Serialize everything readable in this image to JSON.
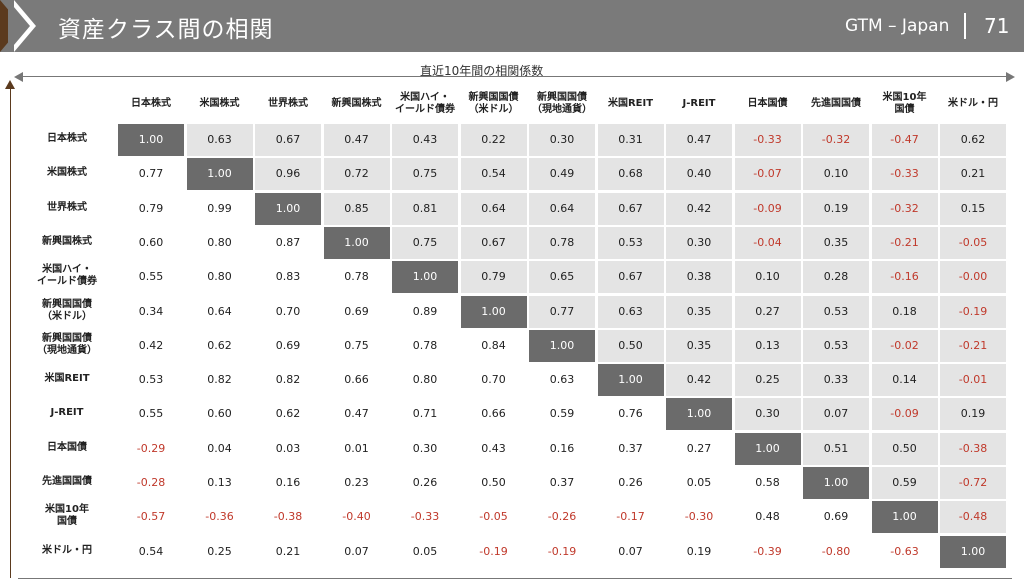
{
  "header": {
    "title": "資産クラス間の相関",
    "brand": "GTM – Japan",
    "page_number": "71"
  },
  "chart_data": {
    "type": "table",
    "title": "直近10年間の相関係数",
    "columns": [
      "日本株式",
      "米国株式",
      "世界株式",
      "新興国株式",
      "米国ハイ・\nイールド債券",
      "新興国国債\n（米ドル）",
      "新興国国債\n（現地通貨）",
      "米国REIT",
      "J-REIT",
      "日本国債",
      "先進国国債",
      "米国10年\n国債",
      "米ドル・円"
    ],
    "rows": [
      "日本株式",
      "米国株式",
      "世界株式",
      "新興国株式",
      "米国ハイ・\nイールド債券",
      "新興国国債\n（米ドル）",
      "新興国国債\n（現地通貨）",
      "米国REIT",
      "J-REIT",
      "日本国債",
      "先進国国債",
      "米国10年\n国債",
      "米ドル・円"
    ],
    "values": [
      [
        "1.00",
        "0.63",
        "0.67",
        "0.47",
        "0.43",
        "0.22",
        "0.30",
        "0.31",
        "0.47",
        "-0.33",
        "-0.32",
        "-0.47",
        "0.62"
      ],
      [
        "0.77",
        "1.00",
        "0.96",
        "0.72",
        "0.75",
        "0.54",
        "0.49",
        "0.68",
        "0.40",
        "-0.07",
        "0.10",
        "-0.33",
        "0.21"
      ],
      [
        "0.79",
        "0.99",
        "1.00",
        "0.85",
        "0.81",
        "0.64",
        "0.64",
        "0.67",
        "0.42",
        "-0.09",
        "0.19",
        "-0.32",
        "0.15"
      ],
      [
        "0.60",
        "0.80",
        "0.87",
        "1.00",
        "0.75",
        "0.67",
        "0.78",
        "0.53",
        "0.30",
        "-0.04",
        "0.35",
        "-0.21",
        "-0.05"
      ],
      [
        "0.55",
        "0.80",
        "0.83",
        "0.78",
        "1.00",
        "0.79",
        "0.65",
        "0.67",
        "0.38",
        "0.10",
        "0.28",
        "-0.16",
        "-0.00"
      ],
      [
        "0.34",
        "0.64",
        "0.70",
        "0.69",
        "0.89",
        "1.00",
        "0.77",
        "0.63",
        "0.35",
        "0.27",
        "0.53",
        "0.18",
        "-0.19"
      ],
      [
        "0.42",
        "0.62",
        "0.69",
        "0.75",
        "0.78",
        "0.84",
        "1.00",
        "0.50",
        "0.35",
        "0.13",
        "0.53",
        "-0.02",
        "-0.21"
      ],
      [
        "0.53",
        "0.82",
        "0.82",
        "0.66",
        "0.80",
        "0.70",
        "0.63",
        "1.00",
        "0.42",
        "0.25",
        "0.33",
        "0.14",
        "-0.01"
      ],
      [
        "0.55",
        "0.60",
        "0.62",
        "0.47",
        "0.71",
        "0.66",
        "0.59",
        "0.76",
        "1.00",
        "0.30",
        "0.07",
        "-0.09",
        "0.19"
      ],
      [
        "-0.29",
        "0.04",
        "0.03",
        "0.01",
        "0.30",
        "0.43",
        "0.16",
        "0.37",
        "0.27",
        "1.00",
        "0.51",
        "0.50",
        "-0.38"
      ],
      [
        "-0.28",
        "0.13",
        "0.16",
        "0.23",
        "0.26",
        "0.50",
        "0.37",
        "0.26",
        "0.05",
        "0.58",
        "1.00",
        "0.59",
        "-0.72"
      ],
      [
        "-0.57",
        "-0.36",
        "-0.38",
        "-0.40",
        "-0.33",
        "-0.05",
        "-0.26",
        "-0.17",
        "-0.30",
        "0.48",
        "0.69",
        "1.00",
        "-0.48"
      ],
      [
        "0.54",
        "0.25",
        "0.21",
        "0.07",
        "0.05",
        "-0.19",
        "-0.19",
        "0.07",
        "0.19",
        "-0.39",
        "-0.80",
        "-0.63",
        "1.00"
      ]
    ],
    "colors": {
      "diagonal": "#6b6b6b",
      "upper": "#e4e4e4",
      "negative": "#c0392b",
      "text": "#222222"
    }
  }
}
